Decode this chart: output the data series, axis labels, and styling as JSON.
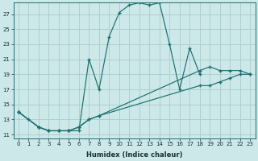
{
  "xlabel": "Humidex (Indice chaleur)",
  "bg_color": "#cce8e8",
  "grid_color": "#aacccc",
  "line_color": "#1a7070",
  "xlim": [
    -0.5,
    23.5
  ],
  "ylim": [
    10.5,
    28.5
  ],
  "yticks": [
    11,
    13,
    15,
    17,
    19,
    21,
    23,
    25,
    27
  ],
  "xticks": [
    0,
    1,
    2,
    3,
    4,
    5,
    6,
    7,
    8,
    9,
    10,
    11,
    12,
    13,
    14,
    15,
    16,
    17,
    18,
    19,
    20,
    21,
    22,
    23
  ],
  "lines": [
    {
      "x": [
        0,
        1,
        2,
        3,
        4,
        5,
        6,
        7,
        8,
        9,
        10,
        11,
        12,
        13,
        14,
        15,
        16,
        17,
        18
      ],
      "y": [
        14,
        13,
        12,
        11.5,
        11.5,
        11.5,
        11.5,
        21,
        17,
        24,
        27.2,
        28.2,
        28.5,
        28.2,
        28.5,
        23,
        17,
        22.5,
        19
      ]
    },
    {
      "x": [
        0,
        2,
        3,
        4,
        5,
        6,
        7,
        8,
        18,
        19,
        20,
        21,
        22,
        23
      ],
      "y": [
        14,
        12,
        11.5,
        11.5,
        11.5,
        12,
        13,
        13.5,
        19.5,
        20,
        19.5,
        19.5,
        19.5,
        19
      ]
    },
    {
      "x": [
        0,
        2,
        3,
        4,
        5,
        6,
        7,
        8,
        18,
        19,
        20,
        21,
        22,
        23
      ],
      "y": [
        14,
        12,
        11.5,
        11.5,
        11.5,
        12,
        13,
        13.5,
        17.5,
        17.5,
        18,
        18.5,
        19,
        19
      ]
    }
  ],
  "xlabel_fontsize": 6,
  "tick_fontsize": 5,
  "xlabel_color": "#1a3030",
  "xlabel_bold": true
}
